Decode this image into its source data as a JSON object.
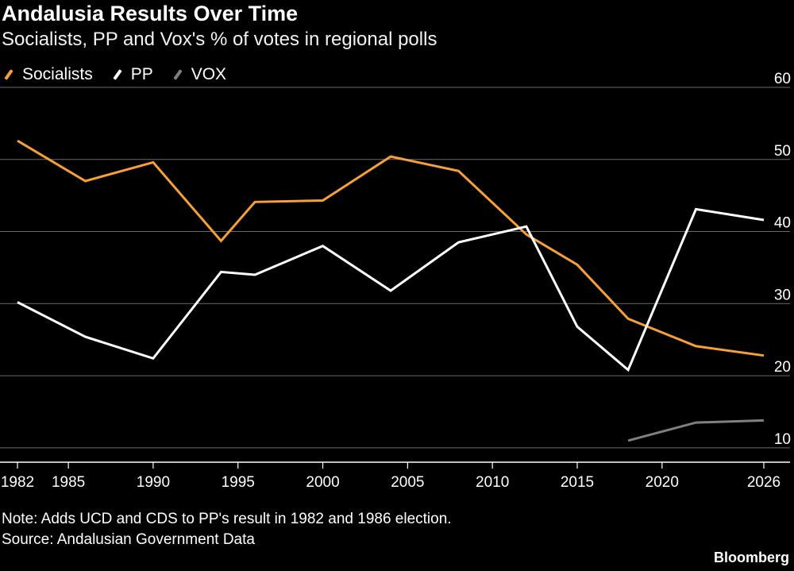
{
  "header": {
    "title": "Andalusia Results Over Time",
    "subtitle": "Socialists, PP and Vox's % of votes in regional polls"
  },
  "footer": {
    "note": "Note: Adds UCD and CDS to PP's result in 1982 and 1986 election.",
    "source": "Source: Andalusian Government Data",
    "brand": "Bloomberg"
  },
  "colors": {
    "background": "#000000",
    "grid": "#6b6b6b",
    "axis": "#ffffff",
    "socialists": "#f7a035",
    "pp": "#ffffff",
    "vox": "#808080"
  },
  "chart_data": {
    "type": "line",
    "title": "Andalusia Results Over Time",
    "subtitle": "Socialists, PP and Vox's % of votes in regional polls",
    "xlabel": "",
    "ylabel": "",
    "xlim": [
      1982,
      2026
    ],
    "ylim": [
      8,
      60
    ],
    "x_ticks": [
      1982,
      1985,
      1990,
      1995,
      2000,
      2005,
      2010,
      2015,
      2020,
      2026
    ],
    "y_ticks": [
      10,
      20,
      30,
      40,
      50,
      60
    ],
    "y_axis_side": "right",
    "grid": "horizontal",
    "legend_position": "top-left",
    "series": [
      {
        "name": "Socialists",
        "color": "#f7a035",
        "x": [
          1982,
          1986,
          1990,
          1994,
          1996,
          2000,
          2004,
          2008,
          2012,
          2015,
          2018,
          2022,
          2026
        ],
        "values": [
          52.6,
          47.0,
          49.6,
          38.7,
          44.1,
          44.3,
          50.4,
          48.4,
          39.6,
          35.4,
          27.9,
          24.1,
          22.8
        ]
      },
      {
        "name": "PP",
        "color": "#ffffff",
        "x": [
          1982,
          1986,
          1990,
          1994,
          1996,
          2000,
          2004,
          2008,
          2012,
          2015,
          2018,
          2022,
          2026
        ],
        "values": [
          30.2,
          25.4,
          22.4,
          34.4,
          34.0,
          38.0,
          31.8,
          38.5,
          40.7,
          26.8,
          20.8,
          43.1,
          41.6
        ]
      },
      {
        "name": "VOX",
        "color": "#808080",
        "x": [
          2018,
          2022,
          2026
        ],
        "values": [
          11.0,
          13.5,
          13.8
        ]
      }
    ]
  }
}
